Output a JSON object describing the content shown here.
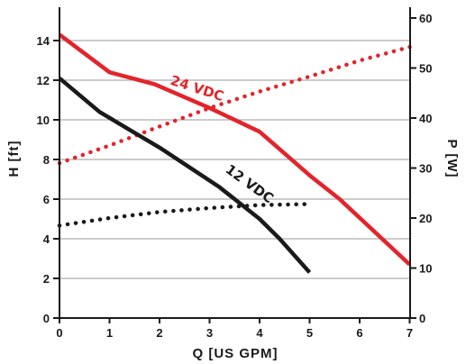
{
  "chart_data": {
    "type": "line",
    "xlabel": "Q [US GPM]",
    "ylabel_left": "H [ft]",
    "ylabel_right": "P [W]",
    "xlim": [
      0,
      7
    ],
    "ylim_left": [
      0,
      15.7
    ],
    "ylim_right": [
      0,
      64
    ],
    "xticks": [
      "0",
      "1",
      "2",
      "3",
      "4",
      "5",
      "6",
      "7"
    ],
    "yticks_left": [
      "0",
      "2",
      "4",
      "6",
      "8",
      "10",
      "12",
      "14"
    ],
    "yticks_right": [
      "0",
      "10",
      "20",
      "30",
      "40",
      "50",
      "60"
    ],
    "grid": "horizontal",
    "series": [
      {
        "name": "24 VDC",
        "metric": "head",
        "axis": "left",
        "style": "solid",
        "color": "#e3242b",
        "x": [
          0,
          1,
          1.9,
          3,
          4,
          5,
          5.6,
          7
        ],
        "y": [
          14.3,
          12.4,
          11.8,
          10.6,
          9.4,
          7.2,
          6.0,
          2.7
        ]
      },
      {
        "name": "24 VDC",
        "metric": "power",
        "axis": "right",
        "style": "dotted",
        "color": "#e3242b",
        "x": [
          0,
          1,
          2,
          3,
          4,
          5,
          6,
          7
        ],
        "y": [
          31,
          34.5,
          38.3,
          42,
          45.3,
          48.3,
          51.5,
          54.2
        ]
      },
      {
        "name": "12 VDC",
        "metric": "head",
        "axis": "left",
        "style": "solid",
        "color": "#1a1a1a",
        "x": [
          0,
          0.8,
          2,
          3.2,
          4,
          4.4,
          5
        ],
        "y": [
          12.1,
          10.4,
          8.6,
          6.6,
          5.0,
          4.0,
          2.3
        ]
      },
      {
        "name": "12 VDC",
        "metric": "power",
        "axis": "right",
        "style": "dotted",
        "color": "#1a1a1a",
        "x": [
          0,
          1,
          2,
          3,
          4,
          5
        ],
        "y": [
          18.5,
          20,
          21.2,
          22,
          22.6,
          22.8
        ]
      }
    ],
    "annotations": [
      {
        "text": "24 VDC",
        "color": "#e3242b",
        "x": 2.2,
        "y": 11.8,
        "rotate": 18
      },
      {
        "text": "12 VDC",
        "color": "#1a1a1a",
        "x": 3.3,
        "y": 7.4,
        "rotate": 36
      }
    ]
  }
}
